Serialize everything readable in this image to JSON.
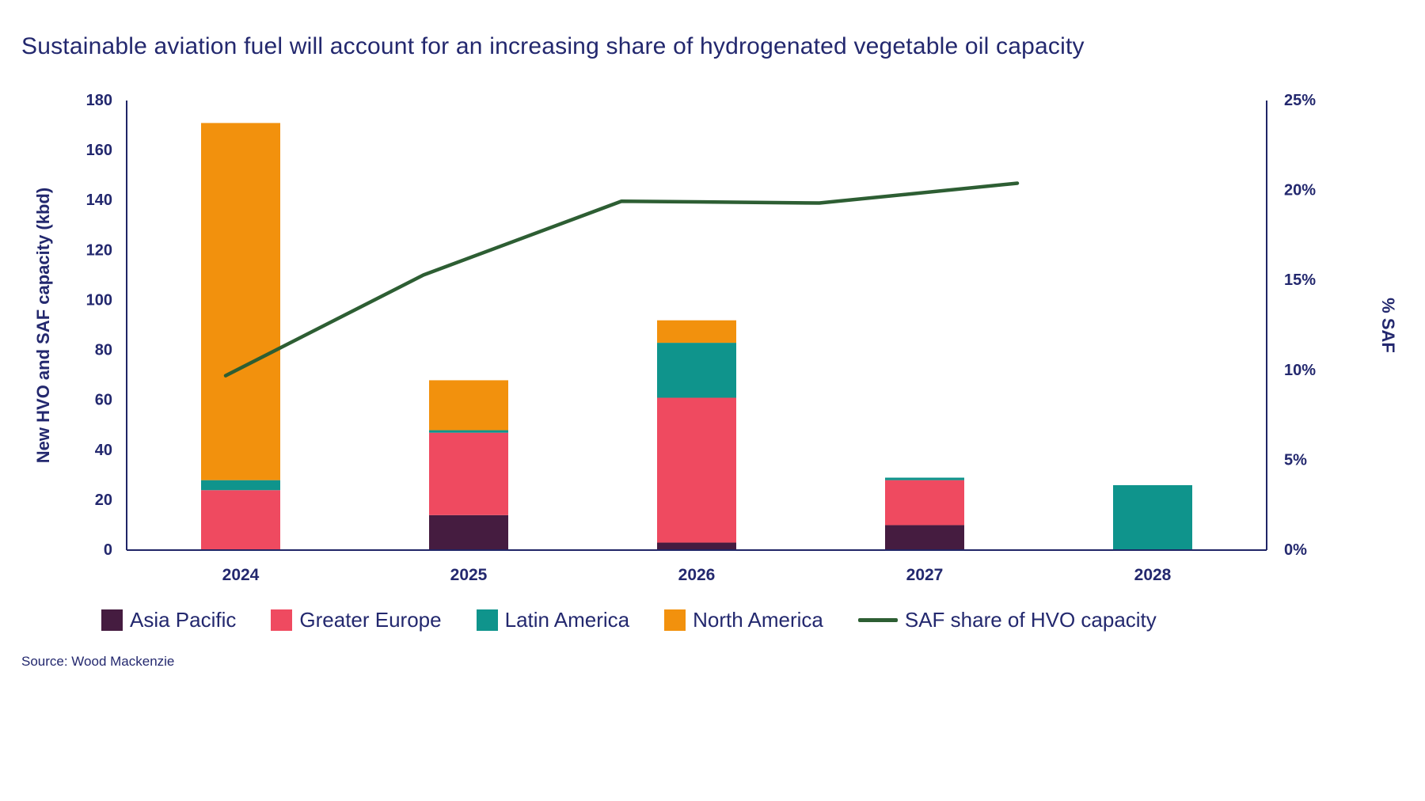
{
  "page": {
    "title": "Sustainable aviation fuel will account for an increasing share of hydrogenated vegetable oil capacity",
    "source": "Source: Wood Mackenzie"
  },
  "chart_data": {
    "type": "bar",
    "subtype": "stacked-bars-with-secondary-axis-line-overlay",
    "title": "Sustainable aviation fuel will account for an increasing share of hydrogenated vegetable oil capacity",
    "categories": [
      "2024",
      "2025",
      "2026",
      "2027",
      "2028"
    ],
    "bar_series": [
      {
        "name": "Asia Pacific",
        "color": "#451c40",
        "values": [
          0,
          14,
          3,
          10,
          0
        ]
      },
      {
        "name": "Greater Europe",
        "color": "#ef4a60",
        "values": [
          24,
          33,
          58,
          18,
          0
        ]
      },
      {
        "name": "Latin America",
        "color": "#0f948c",
        "values": [
          4,
          1,
          22,
          1,
          26
        ]
      },
      {
        "name": "North America",
        "color": "#f2910d",
        "values": [
          143,
          20,
          9,
          0,
          0
        ]
      }
    ],
    "bar_totals": [
      171,
      68,
      92,
      29,
      26
    ],
    "line_series": {
      "name": "SAF share of HVO capacity",
      "color": "#2d5e33",
      "axis": "right",
      "values_pct": [
        9.7,
        15.3,
        19.4,
        19.3,
        20.4
      ]
    },
    "left_axis": {
      "label": "New HVO and SAF capacity (kbd)",
      "min": 0,
      "max": 180,
      "step": 20,
      "tick_labels": [
        "0",
        "20",
        "40",
        "60",
        "80",
        "100",
        "120",
        "140",
        "160",
        "180"
      ]
    },
    "right_axis": {
      "label": "% SAF",
      "min": 0,
      "max": 25,
      "step": 5,
      "tick_labels": [
        "0%",
        "5%",
        "10%",
        "15%",
        "20%",
        "25%"
      ]
    },
    "legend": [
      "Asia Pacific",
      "Greater Europe",
      "Latin America",
      "North America",
      "SAF share of HVO capacity"
    ],
    "legend_position": "bottom",
    "grid": false,
    "colors": {
      "text_navy": "#23286e",
      "axis_line": "#1f2566"
    }
  }
}
